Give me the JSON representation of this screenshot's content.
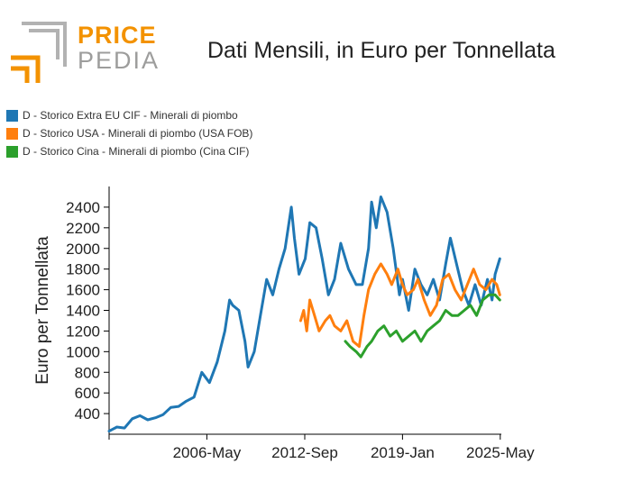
{
  "logo": {
    "word_top": "PRICE",
    "word_bottom": "PEDIA",
    "color_top": "#f39200",
    "color_bottom": "#9d9d9c",
    "mark_orange": "#f39200",
    "mark_gray": "#b2b2b2"
  },
  "title": "Dati Mensili, in Euro per Tonnellata",
  "legend": [
    {
      "label": "D - Storico Extra EU CIF - Minerali di piombo",
      "color": "#1f77b4"
    },
    {
      "label": "D - Storico USA - Minerali di piombo (USA FOB)",
      "color": "#ff7f0e"
    },
    {
      "label": "D - Storico Cina - Minerali di piombo (Cina CIF)",
      "color": "#2ca02c"
    }
  ],
  "chart_data": {
    "type": "line",
    "title": "Dati Mensili, in Euro per Tonnellata",
    "xlabel": "",
    "ylabel": "Euro per Tonnellata",
    "xlim": [
      2000,
      2025.4
    ],
    "ylim": [
      200,
      2600
    ],
    "x_ticks": [
      {
        "value": 2000.0,
        "label": ""
      },
      {
        "value": 2006.33,
        "label": "2006-May"
      },
      {
        "value": 2012.67,
        "label": "2012-Sep"
      },
      {
        "value": 2019.0,
        "label": "2019-Jan"
      },
      {
        "value": 2025.33,
        "label": "2025-May"
      }
    ],
    "y_ticks": [
      400,
      600,
      800,
      1000,
      1200,
      1400,
      1600,
      1800,
      2000,
      2200,
      2400
    ],
    "grid": false,
    "series": [
      {
        "name": "D - Storico Extra EU CIF - Minerali di piombo",
        "color": "#1f77b4",
        "x": [
          2000.0,
          2000.5,
          2001.0,
          2001.5,
          2002.0,
          2002.5,
          2003.0,
          2003.5,
          2004.0,
          2004.5,
          2005.0,
          2005.5,
          2006.0,
          2006.5,
          2007.0,
          2007.5,
          2007.8,
          2008.0,
          2008.4,
          2008.8,
          2009.0,
          2009.4,
          2009.8,
          2010.2,
          2010.6,
          2011.0,
          2011.4,
          2011.8,
          2012.0,
          2012.3,
          2012.7,
          2013.0,
          2013.4,
          2013.8,
          2014.2,
          2014.6,
          2015.0,
          2015.5,
          2016.0,
          2016.4,
          2016.8,
          2017.0,
          2017.3,
          2017.6,
          2018.0,
          2018.4,
          2018.8,
          2019.0,
          2019.4,
          2019.8,
          2020.2,
          2020.6,
          2021.0,
          2021.4,
          2021.8,
          2022.1,
          2022.5,
          2022.9,
          2023.3,
          2023.7,
          2024.1,
          2024.5,
          2024.8,
          2025.0,
          2025.3
        ],
        "values": [
          230,
          270,
          260,
          350,
          380,
          340,
          360,
          390,
          460,
          470,
          520,
          560,
          800,
          700,
          900,
          1200,
          1500,
          1450,
          1400,
          1100,
          850,
          1000,
          1350,
          1700,
          1550,
          1800,
          2000,
          2400,
          2100,
          1750,
          1900,
          2250,
          2200,
          1900,
          1550,
          1700,
          2050,
          1800,
          1650,
          1650,
          2000,
          2450,
          2200,
          2500,
          2350,
          2000,
          1550,
          1700,
          1400,
          1800,
          1650,
          1550,
          1700,
          1500,
          1850,
          2100,
          1850,
          1600,
          1450,
          1650,
          1450,
          1700,
          1500,
          1750,
          1900
        ]
      },
      {
        "name": "D - Storico USA - Minerali di piombo (USA FOB)",
        "color": "#ff7f0e",
        "x": [
          2012.4,
          2012.6,
          2012.8,
          2013.0,
          2013.3,
          2013.6,
          2014.0,
          2014.3,
          2014.6,
          2015.0,
          2015.4,
          2015.8,
          2016.2,
          2016.5,
          2016.8,
          2017.2,
          2017.6,
          2018.0,
          2018.3,
          2018.7,
          2019.0,
          2019.3,
          2019.7,
          2020.0,
          2020.4,
          2020.8,
          2021.2,
          2021.6,
          2022.0,
          2022.4,
          2022.8,
          2023.2,
          2023.6,
          2024.0,
          2024.4,
          2024.8,
          2025.1,
          2025.3
        ],
        "values": [
          1300,
          1400,
          1200,
          1500,
          1350,
          1200,
          1300,
          1350,
          1250,
          1200,
          1300,
          1100,
          1050,
          1350,
          1600,
          1750,
          1850,
          1750,
          1650,
          1800,
          1650,
          1550,
          1600,
          1700,
          1500,
          1350,
          1450,
          1700,
          1750,
          1600,
          1500,
          1650,
          1800,
          1650,
          1600,
          1700,
          1650,
          1550
        ]
      },
      {
        "name": "D - Storico Cina - Minerali di piombo (Cina CIF)",
        "color": "#2ca02c",
        "x": [
          2015.3,
          2015.6,
          2016.0,
          2016.3,
          2016.7,
          2017.0,
          2017.4,
          2017.8,
          2018.2,
          2018.6,
          2019.0,
          2019.4,
          2019.8,
          2020.2,
          2020.6,
          2021.0,
          2021.4,
          2021.8,
          2022.2,
          2022.6,
          2023.0,
          2023.4,
          2023.8,
          2024.2,
          2024.6,
          2025.0,
          2025.3
        ],
        "values": [
          1100,
          1050,
          1000,
          950,
          1050,
          1100,
          1200,
          1250,
          1150,
          1200,
          1100,
          1150,
          1200,
          1100,
          1200,
          1250,
          1300,
          1400,
          1350,
          1350,
          1400,
          1450,
          1350,
          1500,
          1550,
          1550,
          1500
        ]
      }
    ]
  }
}
